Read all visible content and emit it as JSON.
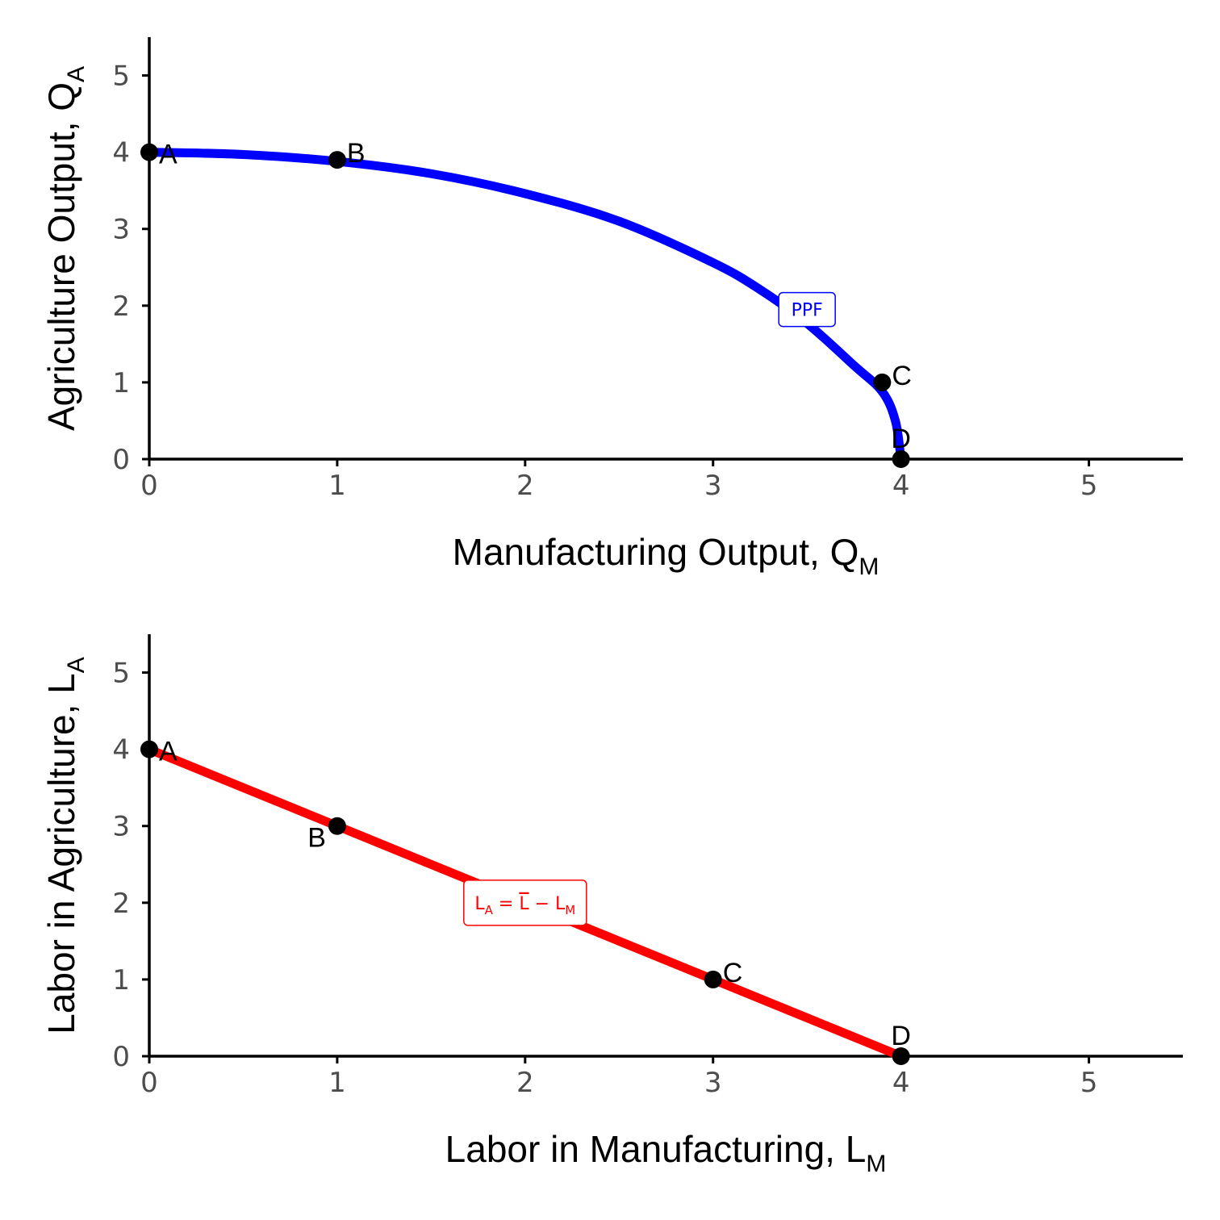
{
  "chart_data": [
    {
      "type": "line",
      "xlabel": {
        "main": "Manufacturing Output, Q",
        "sub": "M"
      },
      "ylabel": {
        "main": "Agriculture Output, Q",
        "sub": "A"
      },
      "xlim": [
        0,
        5.5
      ],
      "ylim": [
        0,
        5.5
      ],
      "xticks": [
        0,
        1,
        2,
        3,
        4,
        5
      ],
      "yticks": [
        0,
        1,
        2,
        3,
        4,
        5
      ],
      "grid": false,
      "series": [
        {
          "name": "PPF",
          "color": "#0000ff",
          "x": [
            0,
            0.5,
            1,
            1.5,
            2,
            2.5,
            3,
            3.25,
            3.5,
            3.75,
            3.9,
            3.97,
            4
          ],
          "y": [
            4.0,
            3.97,
            3.88,
            3.72,
            3.46,
            3.1,
            2.56,
            2.21,
            1.77,
            1.22,
            0.88,
            0.5,
            0.0
          ]
        }
      ],
      "curve_label": {
        "parts": [
          "PPF"
        ],
        "x": 3.5,
        "y": 1.95,
        "color": "#0000ff"
      },
      "points": [
        {
          "label": "A",
          "x": 0,
          "y": 4.0
        },
        {
          "label": "B",
          "x": 1,
          "y": 3.9
        },
        {
          "label": "C",
          "x": 3.9,
          "y": 1.0
        },
        {
          "label": "D",
          "x": 4,
          "y": 0.0
        }
      ]
    },
    {
      "type": "line",
      "xlabel": {
        "main": "Labor in Manufacturing, L",
        "sub": "M"
      },
      "ylabel": {
        "main": "Labor in Agriculture, L",
        "sub": "A"
      },
      "xlim": [
        0,
        5.5
      ],
      "ylim": [
        0,
        5.5
      ],
      "xticks": [
        0,
        1,
        2,
        3,
        4,
        5
      ],
      "yticks": [
        0,
        1,
        2,
        3,
        4,
        5
      ],
      "grid": false,
      "series": [
        {
          "name": "L_A = L̄ − L_M",
          "color": "#ff0000",
          "x": [
            0,
            4
          ],
          "y": [
            4,
            0
          ]
        }
      ],
      "curve_label": {
        "parts": [
          "L",
          "A",
          " = ",
          "L",
          " − L",
          "M"
        ],
        "x": 2.0,
        "y": 2.0,
        "color": "#ff0000"
      },
      "points": [
        {
          "label": "A",
          "x": 0,
          "y": 4
        },
        {
          "label": "B",
          "x": 1,
          "y": 3
        },
        {
          "label": "C",
          "x": 3,
          "y": 1
        },
        {
          "label": "D",
          "x": 4,
          "y": 0
        }
      ]
    }
  ]
}
